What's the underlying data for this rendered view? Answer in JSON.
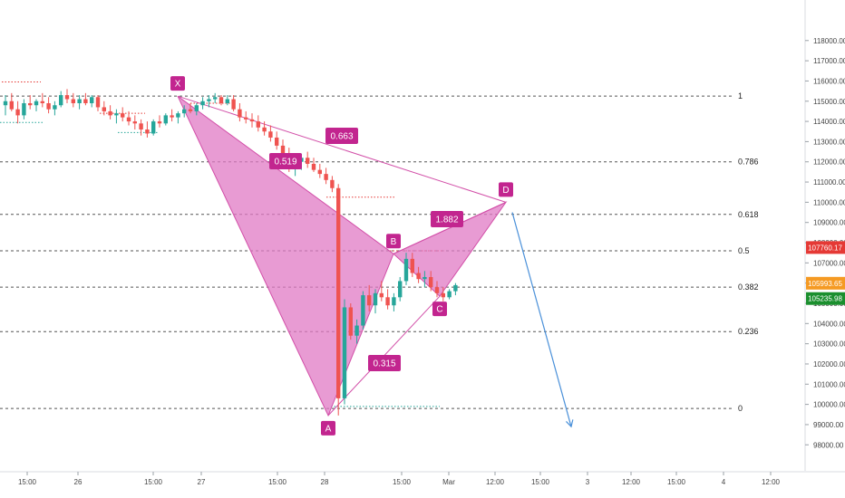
{
  "chart_data": {
    "type": "candlestick",
    "title": "",
    "xlabel": "",
    "ylabel": "",
    "ylim": [
      97250,
      119200
    ],
    "x_ticks": [
      "15:00",
      "26",
      "15:00",
      "27",
      "15:00",
      "28",
      "15:00",
      "Mar",
      "12:00",
      "15:00",
      "3",
      "12:00",
      "15:00",
      "4",
      "12:00"
    ],
    "y_ticks": [
      "118000.00",
      "117000.00",
      "116000.00",
      "115000.00",
      "114000.00",
      "113000.00",
      "112000.00",
      "111000.00",
      "110000.00",
      "109000.00",
      "108000.00",
      "107000.00",
      "106000.00",
      "105000.00",
      "104000.00",
      "103000.00",
      "102000.00",
      "101000.00",
      "100000.00",
      "99000.00",
      "98000.00"
    ],
    "fib_levels": [
      {
        "label": "1",
        "price": 115250
      },
      {
        "label": "0.786",
        "price": 112000
      },
      {
        "label": "0.618",
        "price": 109400
      },
      {
        "label": "0.5",
        "price": 107600
      },
      {
        "label": "0.382",
        "price": 105800
      },
      {
        "label": "0.236",
        "price": 103600
      },
      {
        "label": "0",
        "price": 99800
      }
    ],
    "pattern_points": [
      {
        "label": "X",
        "price": 115250
      },
      {
        "label": "A",
        "price": 99450
      },
      {
        "label": "B",
        "price": 107450
      },
      {
        "label": "C",
        "price": 105350
      },
      {
        "label": "D",
        "price": 110000
      }
    ],
    "ratios": [
      {
        "label": "0.663"
      },
      {
        "label": "0.519"
      },
      {
        "label": "1.882"
      },
      {
        "label": "0.315"
      }
    ],
    "price_tags": [
      {
        "label": "107760.17",
        "color": "#e53935"
      },
      {
        "label": "105993.65",
        "color": "#f59a23"
      },
      {
        "label": "105235.98",
        "color": "#1b8f2e"
      }
    ],
    "projection": {
      "from_price": 109500,
      "to_price": 98900,
      "color": "#4a90d9"
    },
    "colors": {
      "pattern_fill": "#e07ac4",
      "pattern_line": "#d24fa8",
      "label_bg": "#c2258f",
      "up": "#26a69a",
      "down": "#ef5350"
    },
    "candles": [
      {
        "o": 114800,
        "h": 115300,
        "l": 114300,
        "c": 115000
      },
      {
        "o": 115000,
        "h": 115400,
        "l": 114500,
        "c": 114600
      },
      {
        "o": 114600,
        "h": 115000,
        "l": 113900,
        "c": 114300
      },
      {
        "o": 114300,
        "h": 115100,
        "l": 114100,
        "c": 114900
      },
      {
        "o": 114900,
        "h": 115300,
        "l": 114600,
        "c": 114800
      },
      {
        "o": 114800,
        "h": 115100,
        "l": 114500,
        "c": 115000
      },
      {
        "o": 115000,
        "h": 115400,
        "l": 114700,
        "c": 114900
      },
      {
        "o": 114900,
        "h": 115200,
        "l": 114400,
        "c": 114600
      },
      {
        "o": 114600,
        "h": 115000,
        "l": 114300,
        "c": 114800
      },
      {
        "o": 114800,
        "h": 115500,
        "l": 114700,
        "c": 115300
      },
      {
        "o": 115300,
        "h": 115600,
        "l": 114900,
        "c": 115100
      },
      {
        "o": 115100,
        "h": 115400,
        "l": 114700,
        "c": 114900
      },
      {
        "o": 114900,
        "h": 115300,
        "l": 114600,
        "c": 115100
      },
      {
        "o": 115100,
        "h": 115400,
        "l": 114800,
        "c": 114900
      },
      {
        "o": 114900,
        "h": 115300,
        "l": 114700,
        "c": 115200
      },
      {
        "o": 115200,
        "h": 115300,
        "l": 114500,
        "c": 114700
      },
      {
        "o": 114700,
        "h": 115000,
        "l": 114300,
        "c": 114500
      },
      {
        "o": 114500,
        "h": 114800,
        "l": 114100,
        "c": 114300
      },
      {
        "o": 114300,
        "h": 114600,
        "l": 113900,
        "c": 114400
      },
      {
        "o": 114400,
        "h": 114700,
        "l": 114000,
        "c": 114200
      },
      {
        "o": 114200,
        "h": 114500,
        "l": 113800,
        "c": 114000
      },
      {
        "o": 114000,
        "h": 114300,
        "l": 113600,
        "c": 113900
      },
      {
        "o": 113900,
        "h": 114100,
        "l": 113300,
        "c": 113600
      },
      {
        "o": 113600,
        "h": 114000,
        "l": 113200,
        "c": 113400
      },
      {
        "o": 113400,
        "h": 114100,
        "l": 113300,
        "c": 114000
      },
      {
        "o": 114000,
        "h": 114300,
        "l": 113700,
        "c": 113900
      },
      {
        "o": 113900,
        "h": 114400,
        "l": 113800,
        "c": 114300
      },
      {
        "o": 114300,
        "h": 114600,
        "l": 114000,
        "c": 114200
      },
      {
        "o": 114200,
        "h": 114500,
        "l": 113900,
        "c": 114400
      },
      {
        "o": 114400,
        "h": 114800,
        "l": 114200,
        "c": 114600
      },
      {
        "o": 114600,
        "h": 114900,
        "l": 114400,
        "c": 114500
      },
      {
        "o": 114500,
        "h": 114900,
        "l": 114300,
        "c": 114800
      },
      {
        "o": 114800,
        "h": 115200,
        "l": 114600,
        "c": 115000
      },
      {
        "o": 115000,
        "h": 115300,
        "l": 114700,
        "c": 115100
      },
      {
        "o": 115100,
        "h": 115400,
        "l": 114900,
        "c": 115200
      },
      {
        "o": 115200,
        "h": 115300,
        "l": 114800,
        "c": 114900
      },
      {
        "o": 114900,
        "h": 115300,
        "l": 114800,
        "c": 115100
      },
      {
        "o": 115100,
        "h": 115300,
        "l": 114500,
        "c": 114600
      },
      {
        "o": 114600,
        "h": 114900,
        "l": 114000,
        "c": 114200
      },
      {
        "o": 114200,
        "h": 114500,
        "l": 113900,
        "c": 114100
      },
      {
        "o": 114100,
        "h": 114400,
        "l": 113700,
        "c": 114000
      },
      {
        "o": 114000,
        "h": 114300,
        "l": 113500,
        "c": 113700
      },
      {
        "o": 113700,
        "h": 114000,
        "l": 113300,
        "c": 113500
      },
      {
        "o": 113500,
        "h": 113800,
        "l": 113000,
        "c": 113200
      },
      {
        "o": 113200,
        "h": 113500,
        "l": 112600,
        "c": 112800
      },
      {
        "o": 112800,
        "h": 113100,
        "l": 112200,
        "c": 112400
      },
      {
        "o": 112400,
        "h": 112700,
        "l": 111500,
        "c": 111700
      },
      {
        "o": 111700,
        "h": 112300,
        "l": 111300,
        "c": 112000
      },
      {
        "o": 112000,
        "h": 112400,
        "l": 111600,
        "c": 112200
      },
      {
        "o": 112200,
        "h": 112500,
        "l": 111700,
        "c": 111900
      },
      {
        "o": 111900,
        "h": 112200,
        "l": 111500,
        "c": 111600
      },
      {
        "o": 111600,
        "h": 111900,
        "l": 111200,
        "c": 111400
      },
      {
        "o": 111400,
        "h": 111700,
        "l": 110900,
        "c": 111100
      },
      {
        "o": 111100,
        "h": 111300,
        "l": 110500,
        "c": 110700
      },
      {
        "o": 110700,
        "h": 110900,
        "l": 99450,
        "c": 100300
      },
      {
        "o": 100300,
        "h": 105200,
        "l": 100000,
        "c": 104800
      },
      {
        "o": 104800,
        "h": 105000,
        "l": 103200,
        "c": 103400
      },
      {
        "o": 103400,
        "h": 104200,
        "l": 103000,
        "c": 103900
      },
      {
        "o": 103900,
        "h": 105600,
        "l": 103700,
        "c": 105400
      },
      {
        "o": 105400,
        "h": 105900,
        "l": 104600,
        "c": 104900
      },
      {
        "o": 104900,
        "h": 105700,
        "l": 104500,
        "c": 105500
      },
      {
        "o": 105500,
        "h": 106100,
        "l": 105100,
        "c": 105300
      },
      {
        "o": 105300,
        "h": 105700,
        "l": 104700,
        "c": 104900
      },
      {
        "o": 104900,
        "h": 105500,
        "l": 104600,
        "c": 105300
      },
      {
        "o": 105300,
        "h": 106300,
        "l": 105100,
        "c": 106100
      },
      {
        "o": 106100,
        "h": 107500,
        "l": 105900,
        "c": 107200
      },
      {
        "o": 107200,
        "h": 107500,
        "l": 106300,
        "c": 106500
      },
      {
        "o": 106500,
        "h": 106800,
        "l": 106000,
        "c": 106200
      },
      {
        "o": 106200,
        "h": 106600,
        "l": 105800,
        "c": 106300
      },
      {
        "o": 106300,
        "h": 106600,
        "l": 105600,
        "c": 105800
      },
      {
        "o": 105800,
        "h": 106100,
        "l": 105300,
        "c": 105500
      },
      {
        "o": 105500,
        "h": 105800,
        "l": 105100,
        "c": 105300
      },
      {
        "o": 105300,
        "h": 105700,
        "l": 105200,
        "c": 105600
      },
      {
        "o": 105600,
        "h": 106000,
        "l": 105400,
        "c": 105900
      }
    ]
  }
}
